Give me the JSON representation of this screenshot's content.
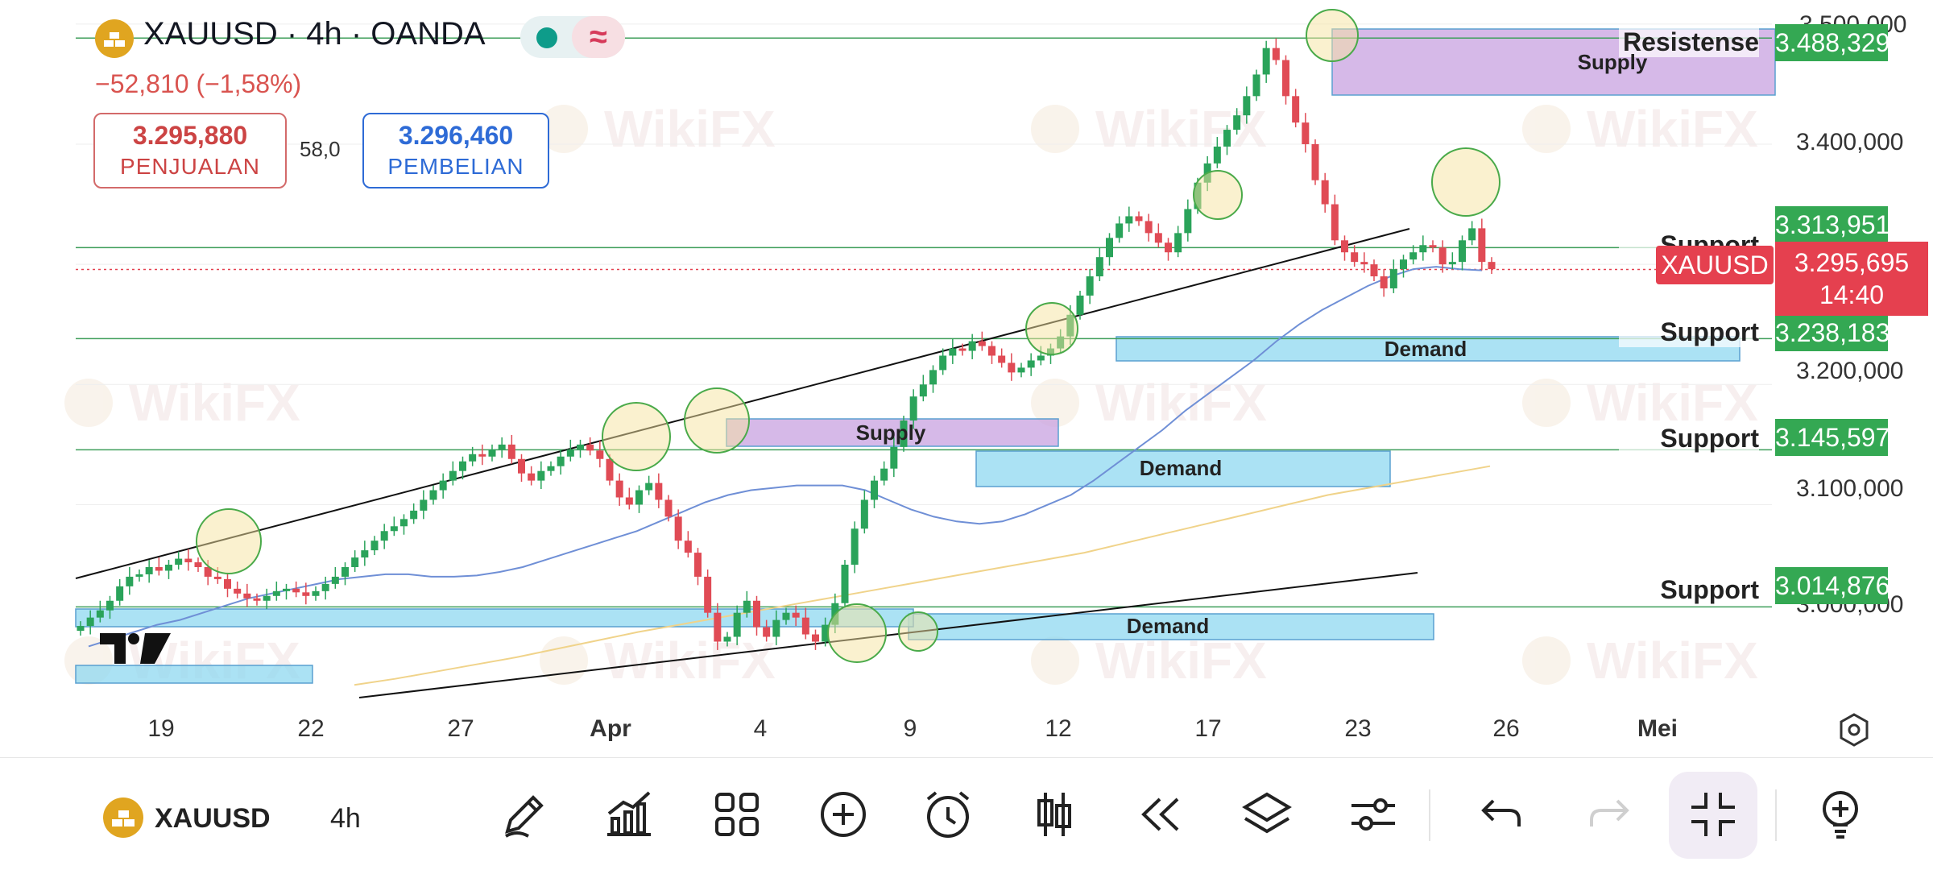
{
  "header": {
    "symbol_title": "XAUUSD · 4h · OANDA",
    "change": "−52,810 (−1,58%)",
    "sell_price": "3.295,880",
    "sell_label": "PENJUALAN",
    "spread": "58,0",
    "buy_price": "3.296,460",
    "buy_label": "PEMBELIAN",
    "colors": {
      "sell": "#cc4444",
      "buy": "#2e6bd6",
      "status": "#0e9c8a"
    },
    "icons": [
      "gold-bars-icon",
      "status-dot-icon",
      "wave-icon"
    ]
  },
  "price_axis": {
    "ticks": [
      "3.500,000",
      "3.400,000",
      "3.200,000",
      "3.100,000",
      "3.000,000"
    ]
  },
  "time_axis": {
    "ticks": [
      "19",
      "22",
      "27",
      "Apr",
      "4",
      "9",
      "12",
      "17",
      "23",
      "26",
      "Mei"
    ]
  },
  "levels": [
    {
      "label": "Resistense",
      "value": "3.488,329"
    },
    {
      "label": "Support",
      "value": "3.313,951"
    },
    {
      "label": "Support",
      "value": "3.238,183"
    },
    {
      "label": "Support",
      "value": "3.145,597"
    },
    {
      "label": "Support",
      "value": "3.014,876"
    }
  ],
  "zones": [
    {
      "label": "Supply"
    },
    {
      "label": "Supply"
    },
    {
      "label": "Demand"
    },
    {
      "label": "Demand"
    },
    {
      "label": "Demand"
    }
  ],
  "current": {
    "symbol": "XAUUSD",
    "price": "3.295,695",
    "countdown": "14:40"
  },
  "chart_data": {
    "type": "candlestick",
    "symbol": "XAUUSD",
    "timeframe": "4h",
    "ylim": [
      2930,
      3520
    ],
    "price_levels": [
      3488.329,
      3313.951,
      3238.183,
      3145.597,
      3014.876
    ],
    "last_price": 3295.695,
    "series": [
      {
        "name": "",
        "values": [
          2999,
          3006,
          3012,
          3020,
          3032,
          3040,
          3042,
          3048,
          3045,
          3050,
          3055,
          3052,
          3048,
          3040,
          3038,
          3030,
          3026,
          3022,
          3020,
          3024,
          3028,
          3030,
          3027,
          3024,
          3028,
          3034,
          3040,
          3048,
          3056,
          3062,
          3070,
          3078,
          3082,
          3088,
          3095,
          3104,
          3112,
          3120,
          3128,
          3136,
          3142,
          3140,
          3146,
          3150,
          3138,
          3126,
          3120,
          3128,
          3132,
          3140,
          3146,
          3150,
          3145,
          3138,
          3120,
          3106,
          3100,
          3112,
          3118,
          3104,
          3090,
          3070,
          3060,
          3040,
          3010,
          2986,
          2990,
          3010,
          3020,
          2998,
          2990,
          3004,
          3010,
          3006,
          2992,
          2986,
          3000,
          3018,
          3050,
          3080,
          3104,
          3120,
          3130,
          3148,
          3170,
          3190,
          3200,
          3212,
          3224,
          3230,
          3228,
          3236,
          3232,
          3224,
          3218,
          3210,
          3214,
          3220,
          3224,
          3230,
          3240,
          3258,
          3274,
          3290,
          3306,
          3322,
          3334,
          3340,
          3336,
          3326,
          3318,
          3310,
          3326,
          3346,
          3368,
          3384,
          3398,
          3412,
          3424,
          3440,
          3458,
          3480,
          3470,
          3440,
          3418,
          3400,
          3370,
          3350,
          3320,
          3310,
          3302,
          3300,
          3290,
          3280,
          3296,
          3304,
          3310,
          3316,
          3314,
          3300,
          3302,
          3320,
          3330,
          3302,
          3296
        ]
      },
      {
        "name": "",
        "values": [
          2982,
          2988,
          2994,
          3000,
          3004,
          3010,
          3016,
          3022,
          3026,
          3030,
          3034,
          3038,
          3040,
          3042,
          3042,
          3040,
          3040,
          3041,
          3044,
          3048,
          3054,
          3060,
          3066,
          3072,
          3078,
          3086,
          3094,
          3102,
          3108,
          3112,
          3114,
          3116,
          3116,
          3116,
          3112,
          3104,
          3096,
          3090,
          3086,
          3084,
          3086,
          3092,
          3100,
          3108,
          3120,
          3134,
          3148,
          3162,
          3178,
          3192,
          3206,
          3220,
          3236,
          3250,
          3262,
          3272,
          3282,
          3290,
          3296,
          3298,
          3296,
          3295
        ]
      },
      {
        "name": "",
        "values": [
          2950,
          2955,
          2961,
          2967,
          2973,
          2980,
          2987,
          2994,
          3000,
          3006,
          3012,
          3018,
          3024,
          3030,
          3036,
          3042,
          3048,
          3054,
          3060,
          3068,
          3076,
          3084,
          3092,
          3100,
          3108,
          3114,
          3120,
          3126,
          3132
        ]
      }
    ]
  }
}
